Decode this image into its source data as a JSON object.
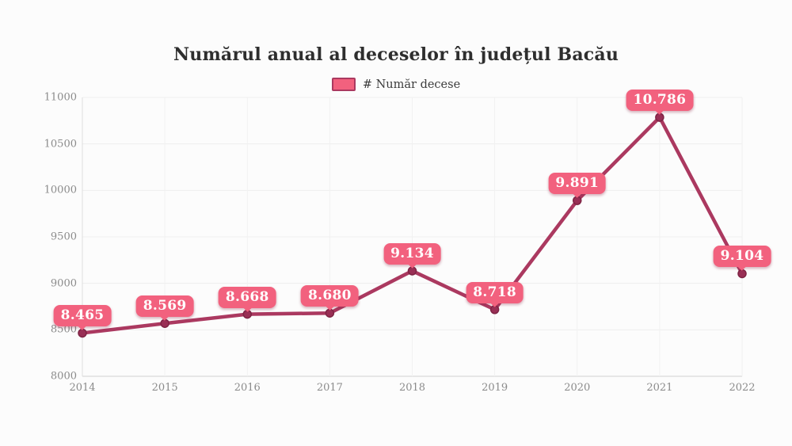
{
  "title": "Numărul anual al deceselor în județul Bacău",
  "legend": {
    "label": "# Număr decese"
  },
  "chart_data": {
    "type": "line",
    "title": "Numărul anual al deceselor în județul Bacău",
    "categories": [
      "2014",
      "2015",
      "2016",
      "2017",
      "2018",
      "2019",
      "2020",
      "2021",
      "2022"
    ],
    "series": [
      {
        "name": "# Număr decese",
        "values": [
          8465,
          8569,
          8668,
          8680,
          9134,
          8718,
          9891,
          10786,
          9104
        ]
      }
    ],
    "point_labels": [
      "8.465",
      "8.569",
      "8.668",
      "8.680",
      "9.134",
      "8.718",
      "9.891",
      "10.786",
      "9.104"
    ],
    "yticks": [
      "8000",
      "8500",
      "9000",
      "9500",
      "10000",
      "10500",
      "11000"
    ],
    "ylim": [
      8000,
      11000
    ],
    "grid": true,
    "legend_position": "top",
    "colors": {
      "line": "#ab3960",
      "marker": "#992f55",
      "marker_stroke": "#7e2444",
      "label_bg": "#f2617e",
      "label_text": "#ffffff",
      "grid": "#efefef",
      "axis": "#cfcfcf",
      "tick_text": "#8b8b8b"
    }
  }
}
